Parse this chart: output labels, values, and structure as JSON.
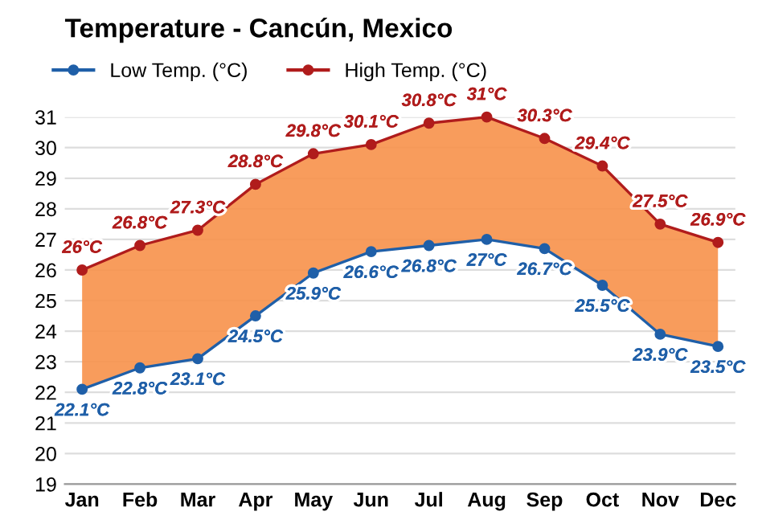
{
  "chart_data": {
    "type": "line",
    "title": "Temperature - Cancún, Mexico",
    "categories": [
      "Jan",
      "Feb",
      "Mar",
      "Apr",
      "May",
      "Jun",
      "Jul",
      "Aug",
      "Sep",
      "Oct",
      "Nov",
      "Dec"
    ],
    "series": [
      {
        "name": "Low Temp. (°C)",
        "color": "#1f5fa8",
        "values": [
          22.1,
          22.8,
          23.1,
          24.5,
          25.9,
          26.6,
          26.8,
          27,
          26.7,
          25.5,
          23.9,
          23.5
        ],
        "value_labels": [
          "22.1°C",
          "22.8°C",
          "23.1°C",
          "24.5°C",
          "25.9°C",
          "26.6°C",
          "26.8°C",
          "27°C",
          "26.7°C",
          "25.5°C",
          "23.9°C",
          "23.5°C"
        ]
      },
      {
        "name": "High Temp. (°C)",
        "color": "#b01c1c",
        "values": [
          26,
          26.8,
          27.3,
          28.8,
          29.8,
          30.1,
          30.8,
          31,
          30.3,
          29.4,
          27.5,
          26.9
        ],
        "value_labels": [
          "26°C",
          "26.8°C",
          "27.3°C",
          "28.8°C",
          "29.8°C",
          "30.1°C",
          "30.8°C",
          "31°C",
          "30.3°C",
          "29.4°C",
          "27.5°C",
          "26.9°C"
        ],
        "lower": [
          22.1,
          22.8,
          23.1,
          24.5,
          25.9,
          26.6,
          26.8,
          27,
          26.7,
          25.5,
          23.9,
          23.5
        ],
        "upper": [
          26,
          26.8,
          27.3,
          28.8,
          29.8,
          30.1,
          30.8,
          31,
          30.3,
          29.4,
          27.5,
          26.9
        ]
      }
    ],
    "ylim": [
      19,
      31
    ],
    "yticks": [
      19,
      20,
      21,
      22,
      23,
      24,
      25,
      26,
      27,
      28,
      29,
      30,
      31
    ],
    "grid": "y",
    "legend": "top left",
    "marker": "circle",
    "line_style": "solid"
  }
}
